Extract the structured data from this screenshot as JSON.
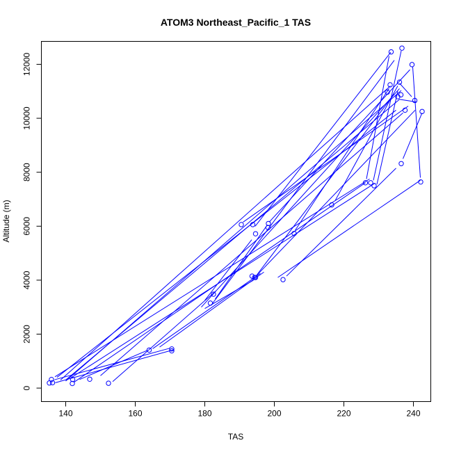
{
  "chart_data": {
    "type": "line",
    "title": "ATOM3 Northeast_Pacific_1 TAS",
    "xlabel": "TAS",
    "ylabel": "Altitude (m)",
    "xlim": [
      133,
      245
    ],
    "ylim": [
      -500,
      12850
    ],
    "x_ticks": [
      140,
      160,
      180,
      200,
      220,
      240
    ],
    "y_ticks": [
      0,
      2000,
      4000,
      6000,
      8000,
      10000,
      12000
    ],
    "grid": false,
    "legend": "none",
    "colors": {
      "series": "#0000ff",
      "axis": "#000000"
    },
    "points": [
      {
        "x": 135.3,
        "y": 190
      },
      {
        "x": 136.2,
        "y": 200
      },
      {
        "x": 141.9,
        "y": 170
      },
      {
        "x": 135.9,
        "y": 320
      },
      {
        "x": 142.0,
        "y": 320
      },
      {
        "x": 146.9,
        "y": 330
      },
      {
        "x": 152.3,
        "y": 180
      },
      {
        "x": 164.0,
        "y": 1410
      },
      {
        "x": 170.5,
        "y": 1380
      },
      {
        "x": 170.5,
        "y": 1450
      },
      {
        "x": 181.6,
        "y": 3150
      },
      {
        "x": 182.5,
        "y": 3480
      },
      {
        "x": 190.5,
        "y": 6060
      },
      {
        "x": 193.6,
        "y": 4150
      },
      {
        "x": 193.8,
        "y": 6060
      },
      {
        "x": 194.3,
        "y": 4100
      },
      {
        "x": 194.6,
        "y": 4100
      },
      {
        "x": 194.6,
        "y": 5720
      },
      {
        "x": 198.2,
        "y": 5950
      },
      {
        "x": 198.3,
        "y": 6100
      },
      {
        "x": 202.5,
        "y": 4020
      },
      {
        "x": 205.7,
        "y": 5730
      },
      {
        "x": 216.5,
        "y": 6790
      },
      {
        "x": 226.2,
        "y": 7610
      },
      {
        "x": 227.7,
        "y": 7610
      },
      {
        "x": 228.7,
        "y": 7500
      },
      {
        "x": 232.5,
        "y": 10970
      },
      {
        "x": 233.3,
        "y": 11240
      },
      {
        "x": 233.6,
        "y": 12460
      },
      {
        "x": 235.5,
        "y": 10800
      },
      {
        "x": 236.0,
        "y": 11340
      },
      {
        "x": 236.4,
        "y": 10870
      },
      {
        "x": 236.5,
        "y": 8320
      },
      {
        "x": 236.7,
        "y": 12600
      },
      {
        "x": 237.6,
        "y": 10300
      },
      {
        "x": 239.6,
        "y": 11990
      },
      {
        "x": 240.4,
        "y": 10660
      },
      {
        "x": 242.1,
        "y": 7640
      },
      {
        "x": 242.5,
        "y": 10250
      }
    ],
    "lines": [
      [
        [
          142.4,
          220
        ],
        [
          226.2,
          7610
        ]
      ],
      [
        [
          136.9,
          420
        ],
        [
          227.4,
          7750
        ]
      ],
      [
        [
          141.5,
          380
        ],
        [
          229.0,
          7600
        ]
      ],
      [
        [
          136.8,
          310
        ],
        [
          170.0,
          1480
        ]
      ],
      [
        [
          137.0,
          200
        ],
        [
          171.0,
          1420
        ]
      ],
      [
        [
          144.0,
          320
        ],
        [
          163.5,
          1400
        ]
      ],
      [
        [
          140.0,
          260
        ],
        [
          236.5,
          11030
        ]
      ],
      [
        [
          138.5,
          300
        ],
        [
          233.4,
          11200
        ]
      ],
      [
        [
          137.5,
          400
        ],
        [
          235.0,
          10300
        ]
      ],
      [
        [
          150.0,
          460
        ],
        [
          237.0,
          10200
        ]
      ],
      [
        [
          140.0,
          300
        ],
        [
          236.0,
          10700
        ]
      ],
      [
        [
          153.5,
          240
        ],
        [
          183.2,
          3600
        ]
      ],
      [
        [
          165.0,
          1460
        ],
        [
          196.0,
          4250
        ]
      ],
      [
        [
          167.0,
          1520
        ],
        [
          197.0,
          4300
        ]
      ],
      [
        [
          180.0,
          2950
        ],
        [
          194.0,
          4000
        ]
      ],
      [
        [
          179.0,
          3000
        ],
        [
          236.0,
          11100
        ]
      ],
      [
        [
          182.0,
          3100
        ],
        [
          234.5,
          12150
        ]
      ],
      [
        [
          180.0,
          3250
        ],
        [
          193.5,
          5500
        ]
      ],
      [
        [
          183.0,
          3300
        ],
        [
          198.0,
          6050
        ]
      ],
      [
        [
          194.0,
          4050
        ],
        [
          240.5,
          10300
        ]
      ],
      [
        [
          203.5,
          4150
        ],
        [
          235.0,
          8150
        ]
      ],
      [
        [
          195.0,
          4200
        ],
        [
          234.5,
          10900
        ]
      ],
      [
        [
          191.0,
          6150
        ],
        [
          238.5,
          10450
        ]
      ],
      [
        [
          194.5,
          6000
        ],
        [
          233.5,
          12450
        ]
      ],
      [
        [
          198.5,
          6150
        ],
        [
          239.0,
          11800
        ]
      ],
      [
        [
          206.0,
          5850
        ],
        [
          233.0,
          11100
        ]
      ],
      [
        [
          217.5,
          6950
        ],
        [
          235.5,
          11200
        ]
      ],
      [
        [
          226.5,
          7750
        ],
        [
          233.0,
          12300
        ]
      ],
      [
        [
          228.5,
          7700
        ],
        [
          236.5,
          12500
        ]
      ],
      [
        [
          229.5,
          7550
        ],
        [
          235.5,
          11000
        ]
      ],
      [
        [
          236.0,
          11300
        ],
        [
          239.5,
          10800
        ]
      ],
      [
        [
          239.8,
          11900
        ],
        [
          242.0,
          7800
        ]
      ],
      [
        [
          237.0,
          8500
        ],
        [
          242.5,
          10200
        ]
      ],
      [
        [
          201.0,
          4100
        ],
        [
          242.0,
          7700
        ]
      ],
      [
        [
          236.0,
          10700
        ],
        [
          241.0,
          10600
        ]
      ]
    ]
  }
}
